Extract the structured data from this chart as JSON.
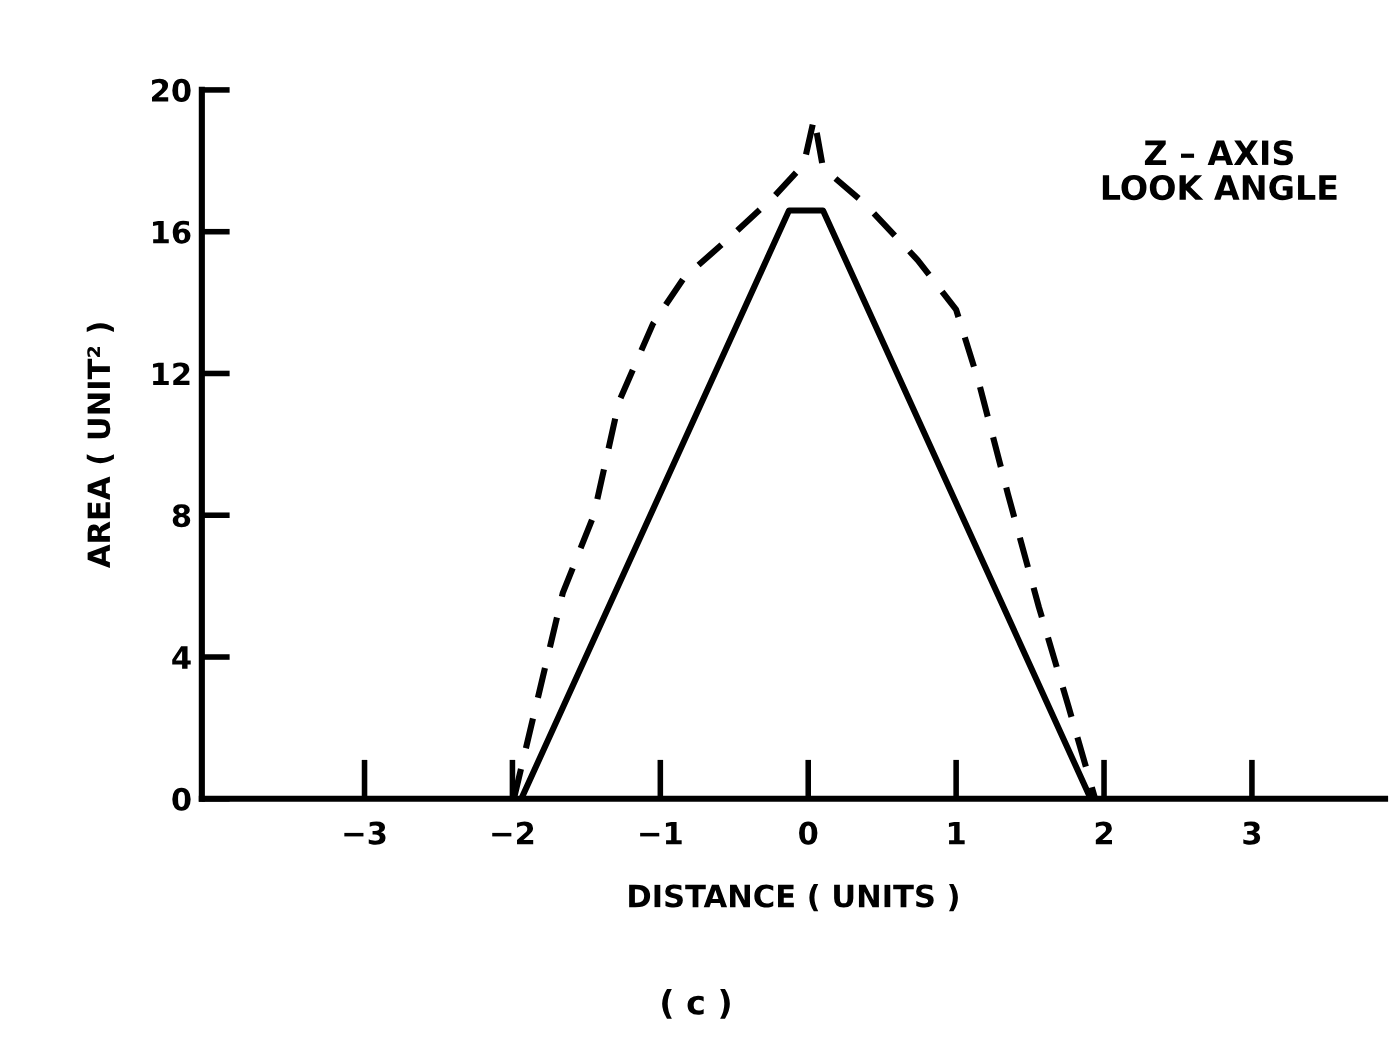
{
  "chart_data": {
    "type": "line",
    "xlabel": "DISTANCE ( UNITS )",
    "ylabel": "AREA ( UNIT² )",
    "annotations": [
      "Z – AXIS\nLOOK ANGLE",
      "( c )"
    ],
    "xlim": [
      -4.1,
      3.9
    ],
    "xticks": [
      {
        "value": -3,
        "label": "−3"
      },
      {
        "value": -2,
        "label": "−2"
      },
      {
        "value": -1,
        "label": "−1"
      },
      0,
      1,
      2,
      3
    ],
    "ylim": [
      0,
      20
    ],
    "yticks": [
      0,
      4,
      8,
      12,
      16,
      20
    ],
    "grid": false,
    "marker": "none",
    "series": [
      {
        "color": "#000000",
        "line_style": "solid",
        "x": [
          -1.94,
          -0.13,
          0.1,
          1.91
        ],
        "values": [
          0,
          16.6,
          16.6,
          0
        ]
      },
      {
        "color": "#000000",
        "line_style": "dashed",
        "x": [
          -1.99,
          -1.66,
          -1.45,
          -1.28,
          -1.05,
          -0.84,
          -0.54,
          -0.23,
          -0.03,
          0.04,
          0.1,
          0.38,
          0.74,
          1.0,
          1.15,
          1.35,
          1.56,
          1.76,
          1.94
        ],
        "values": [
          0,
          5.8,
          8,
          11.2,
          13.4,
          14.7,
          15.8,
          17,
          17.9,
          19.2,
          17.8,
          16.8,
          15.2,
          13.8,
          11.8,
          8.6,
          5.4,
          2.6,
          0
        ]
      }
    ]
  }
}
